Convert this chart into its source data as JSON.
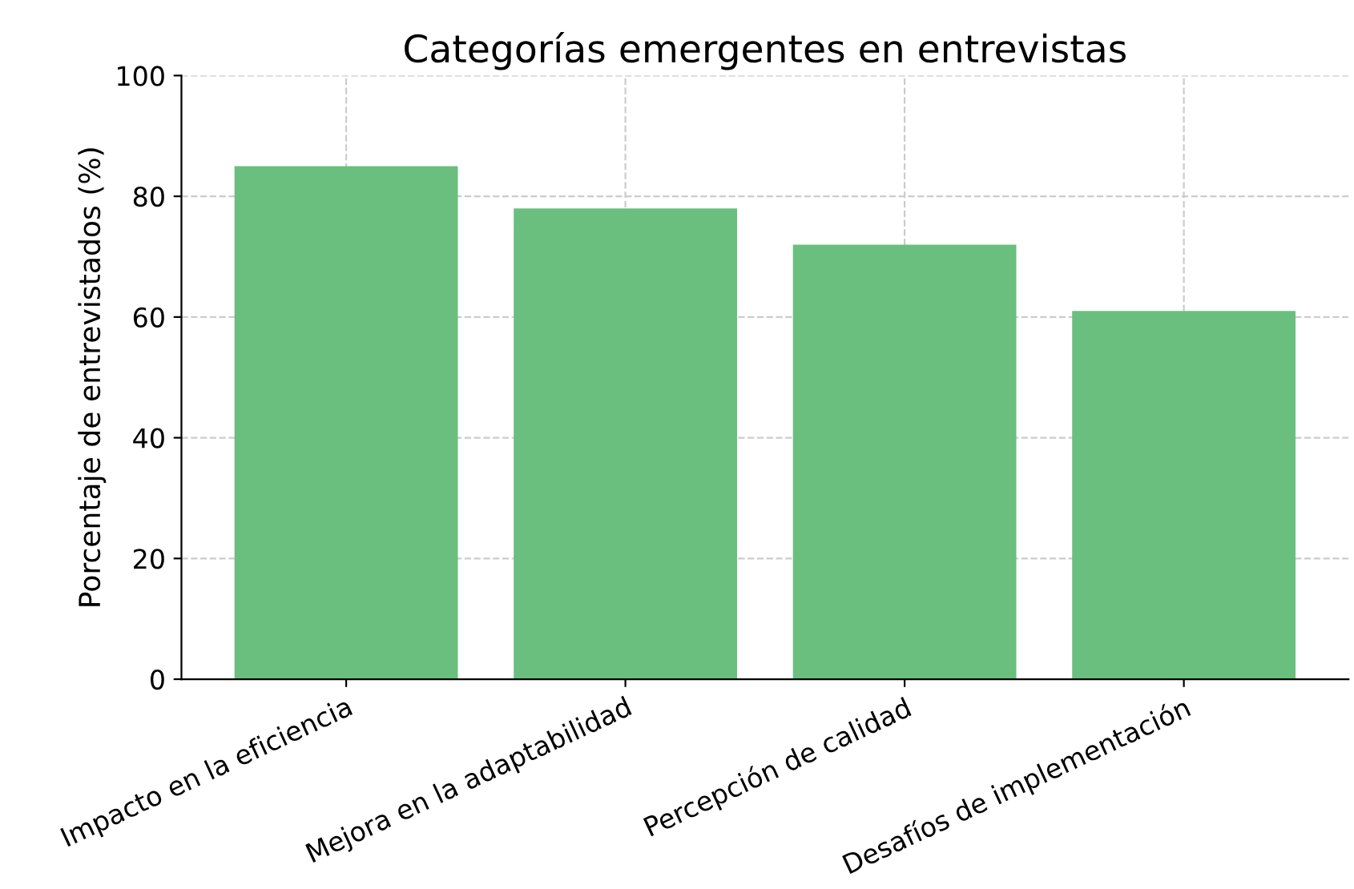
{
  "chart_data": {
    "type": "bar",
    "title": "Categorías emergentes en entrevistas",
    "ylabel": "Porcentaje de entrevistados (%)",
    "categories": [
      "Impacto en la eficiencia",
      "Mejora en la adaptabilidad",
      "Percepción de calidad",
      "Desafíos de implementación"
    ],
    "values": [
      85,
      78,
      72,
      61
    ],
    "color": "#6abf7f",
    "ylim": [
      0,
      100
    ],
    "yticks": [
      0,
      20,
      40,
      60,
      80,
      100
    ],
    "grid": true
  }
}
